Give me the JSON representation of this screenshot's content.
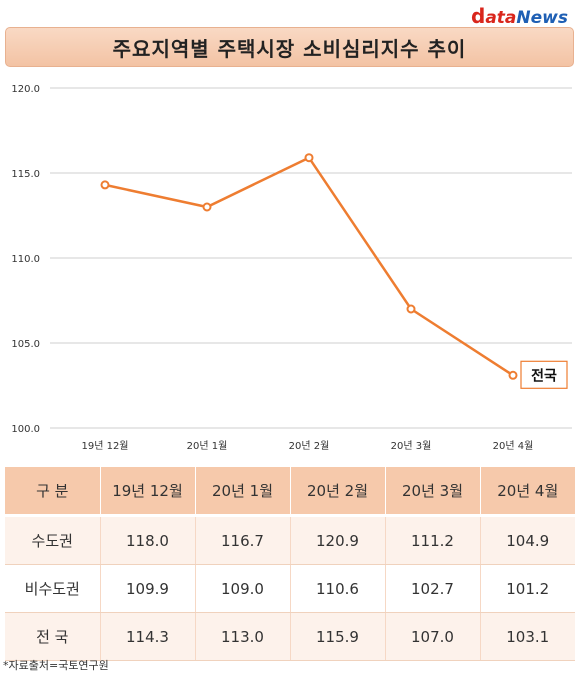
{
  "logo": {
    "d": "d",
    "ata": "ata",
    "news": "News"
  },
  "title": "주요지역별 주택시장 소비심리지수 추이",
  "chart_data": {
    "type": "line",
    "title": "주요지역별 주택시장 소비심리지수 추이",
    "categories": [
      "19년 12월",
      "20년 1월",
      "20년 2월",
      "20년 3월",
      "20년 4월"
    ],
    "series": [
      {
        "name": "전국",
        "values": [
          114.3,
          113.0,
          115.9,
          107.0,
          103.1
        ]
      }
    ],
    "ylim": [
      100.0,
      120.0
    ],
    "yticks": [
      "100.0",
      "105.0",
      "110.0",
      "115.0",
      "120.0"
    ],
    "grid": true,
    "line_color": "#ee7d31"
  },
  "table": {
    "header": [
      "구 분",
      "19년 12월",
      "20년 1월",
      "20년 2월",
      "20년 3월",
      "20년 4월"
    ],
    "rows": [
      [
        "수도권",
        "118.0",
        "116.7",
        "120.9",
        "111.2",
        "104.9"
      ],
      [
        "비수도권",
        "109.9",
        "109.0",
        "110.6",
        "102.7",
        "101.2"
      ],
      [
        "전 국",
        "114.3",
        "113.0",
        "115.9",
        "107.0",
        "103.1"
      ]
    ]
  },
  "source": "*자료출처=국토연구원"
}
